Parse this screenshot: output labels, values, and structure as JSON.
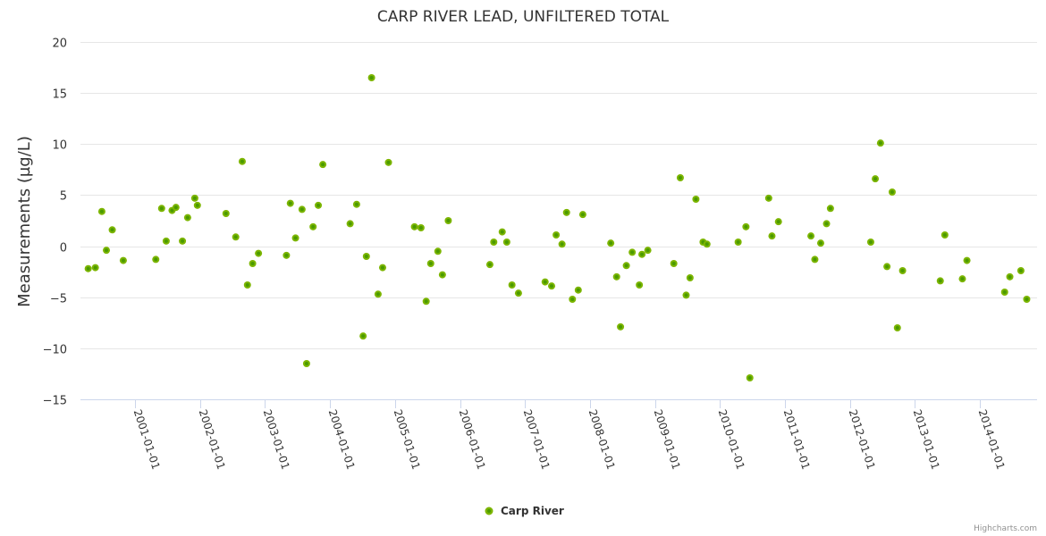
{
  "chart_data": {
    "type": "scatter",
    "title": "CARP RIVER LEAD, UNFILTERED TOTAL",
    "xlabel": "",
    "ylabel": "Measurements (µg/L)",
    "ylim": [
      -15,
      20
    ],
    "yticks": [
      20,
      15,
      10,
      5,
      0,
      -5,
      -10,
      -15
    ],
    "ytick_labels": [
      "20",
      "15",
      "10",
      "5",
      "0",
      "−5",
      "−10",
      "−15"
    ],
    "xlim_years": [
      2000.16,
      2014.88
    ],
    "xticks_years": [
      2001,
      2002,
      2003,
      2004,
      2005,
      2006,
      2007,
      2008,
      2009,
      2010,
      2011,
      2012,
      2013,
      2014
    ],
    "xtick_labels": [
      "2001-01-01",
      "2002-01-01",
      "2003-01-01",
      "2004-01-01",
      "2005-01-01",
      "2006-01-01",
      "2007-01-01",
      "2008-01-01",
      "2009-01-01",
      "2010-01-01",
      "2011-01-01",
      "2012-01-01",
      "2013-01-01",
      "2014-01-01"
    ],
    "grid": true,
    "legend": {
      "position": "bottom-center",
      "entries": [
        "Carp River"
      ]
    },
    "credits": "Highcharts.com",
    "series": [
      {
        "name": "Carp River",
        "color": "#7cb500",
        "points": [
          [
            2000.28,
            -2.2
          ],
          [
            2000.39,
            -2.1
          ],
          [
            2000.49,
            3.4
          ],
          [
            2000.56,
            -0.4
          ],
          [
            2000.65,
            1.6
          ],
          [
            2000.82,
            -1.4
          ],
          [
            2001.32,
            -1.3
          ],
          [
            2001.41,
            3.7
          ],
          [
            2001.48,
            0.5
          ],
          [
            2001.57,
            3.5
          ],
          [
            2001.63,
            3.8
          ],
          [
            2001.73,
            0.5
          ],
          [
            2001.81,
            2.8
          ],
          [
            2001.92,
            4.7
          ],
          [
            2001.96,
            4.0
          ],
          [
            2002.4,
            3.2
          ],
          [
            2002.55,
            0.9
          ],
          [
            2002.65,
            8.3
          ],
          [
            2002.73,
            -3.8
          ],
          [
            2002.81,
            -1.7
          ],
          [
            2002.9,
            -0.7
          ],
          [
            2003.33,
            -0.9
          ],
          [
            2003.39,
            4.2
          ],
          [
            2003.47,
            0.8
          ],
          [
            2003.57,
            3.6
          ],
          [
            2003.64,
            -11.5
          ],
          [
            2003.74,
            1.9
          ],
          [
            2003.82,
            4.0
          ],
          [
            2003.89,
            8.0
          ],
          [
            2004.31,
            2.2
          ],
          [
            2004.41,
            4.1
          ],
          [
            2004.51,
            -8.8
          ],
          [
            2004.56,
            -1.0
          ],
          [
            2004.64,
            16.5
          ],
          [
            2004.74,
            -4.7
          ],
          [
            2004.81,
            -2.1
          ],
          [
            2004.9,
            8.2
          ],
          [
            2005.3,
            1.9
          ],
          [
            2005.4,
            1.8
          ],
          [
            2005.48,
            -5.4
          ],
          [
            2005.55,
            -1.7
          ],
          [
            2005.66,
            -0.5
          ],
          [
            2005.73,
            -2.8
          ],
          [
            2005.82,
            2.5
          ],
          [
            2006.46,
            -1.8
          ],
          [
            2006.52,
            0.4
          ],
          [
            2006.65,
            1.4
          ],
          [
            2006.72,
            0.4
          ],
          [
            2006.8,
            -3.8
          ],
          [
            2006.9,
            -4.6
          ],
          [
            2007.31,
            -3.5
          ],
          [
            2007.41,
            -3.9
          ],
          [
            2007.48,
            1.1
          ],
          [
            2007.57,
            0.2
          ],
          [
            2007.64,
            3.3
          ],
          [
            2007.73,
            -5.2
          ],
          [
            2007.82,
            -4.3
          ],
          [
            2007.89,
            3.1
          ],
          [
            2008.32,
            0.3
          ],
          [
            2008.41,
            -3.0
          ],
          [
            2008.47,
            -7.9
          ],
          [
            2008.56,
            -1.9
          ],
          [
            2008.65,
            -0.6
          ],
          [
            2008.76,
            -3.8
          ],
          [
            2008.8,
            -0.8
          ],
          [
            2008.89,
            -0.4
          ],
          [
            2009.29,
            -1.7
          ],
          [
            2009.39,
            6.7
          ],
          [
            2009.48,
            -4.8
          ],
          [
            2009.54,
            -3.1
          ],
          [
            2009.63,
            4.6
          ],
          [
            2009.74,
            0.4
          ],
          [
            2009.8,
            0.2
          ],
          [
            2010.28,
            0.4
          ],
          [
            2010.4,
            1.9
          ],
          [
            2010.46,
            -12.9
          ],
          [
            2010.75,
            4.7
          ],
          [
            2010.8,
            1.0
          ],
          [
            2010.9,
            2.4
          ],
          [
            2011.4,
            1.0
          ],
          [
            2011.46,
            -1.3
          ],
          [
            2011.55,
            0.3
          ],
          [
            2011.64,
            2.2
          ],
          [
            2011.7,
            3.7
          ],
          [
            2012.32,
            0.4
          ],
          [
            2012.39,
            6.6
          ],
          [
            2012.47,
            10.1
          ],
          [
            2012.57,
            -2.0
          ],
          [
            2012.65,
            5.3
          ],
          [
            2012.73,
            -8.0
          ],
          [
            2012.81,
            -2.4
          ],
          [
            2013.39,
            -3.4
          ],
          [
            2013.46,
            1.1
          ],
          [
            2013.73,
            -3.2
          ],
          [
            2013.8,
            -1.4
          ],
          [
            2014.38,
            -4.5
          ],
          [
            2014.46,
            -3.0
          ],
          [
            2014.63,
            -2.4
          ],
          [
            2014.72,
            -5.2
          ]
        ]
      }
    ]
  }
}
